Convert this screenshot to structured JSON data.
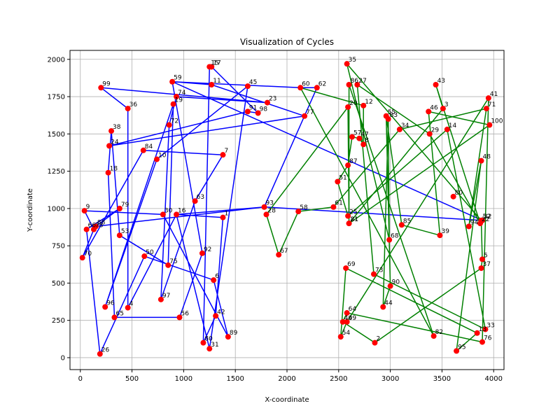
{
  "chart_data": {
    "type": "scatter",
    "title": "Visualization of Cycles",
    "xlabel": "X-coordinate",
    "ylabel": "Y-coordinate",
    "xlim": [
      -100,
      4100
    ],
    "ylim": [
      -80,
      2060
    ],
    "xticks": [
      0,
      500,
      1000,
      1500,
      2000,
      2500,
      3000,
      3500,
      4000
    ],
    "yticks": [
      0,
      250,
      500,
      750,
      1000,
      1250,
      1500,
      1750,
      2000
    ],
    "grid": true,
    "point_color": "#ff0000",
    "points": [
      {
        "id": "1",
        "x": 1380,
        "y": 940
      },
      {
        "id": "2",
        "x": 2850,
        "y": 100
      },
      {
        "id": "3",
        "x": 3510,
        "y": 1670
      },
      {
        "id": "4",
        "x": 460,
        "y": 335
      },
      {
        "id": "5",
        "x": 3890,
        "y": 660
      },
      {
        "id": "6",
        "x": 1290,
        "y": 520
      },
      {
        "id": "7",
        "x": 1380,
        "y": 1360
      },
      {
        "id": "8",
        "x": 2740,
        "y": 1430
      },
      {
        "id": "9",
        "x": 40,
        "y": 985
      },
      {
        "id": "10",
        "x": 740,
        "y": 1330
      },
      {
        "id": "11",
        "x": 1270,
        "y": 1830
      },
      {
        "id": "12",
        "x": 2740,
        "y": 1690
      },
      {
        "id": "13",
        "x": 3840,
        "y": 165
      },
      {
        "id": "14",
        "x": 3550,
        "y": 1530
      },
      {
        "id": "15",
        "x": 1250,
        "y": 1950
      },
      {
        "id": "16",
        "x": 930,
        "y": 960
      },
      {
        "id": "17",
        "x": 1270,
        "y": 1950
      },
      {
        "id": "18",
        "x": 270,
        "y": 1240
      },
      {
        "id": "19",
        "x": 900,
        "y": 1700
      },
      {
        "id": "20",
        "x": 2590,
        "y": 1680
      },
      {
        "id": "21",
        "x": 2600,
        "y": 900
      },
      {
        "id": "22",
        "x": 3870,
        "y": 900
      },
      {
        "id": "23",
        "x": 1810,
        "y": 1710
      },
      {
        "id": "24",
        "x": 280,
        "y": 1420
      },
      {
        "id": "25",
        "x": 2590,
        "y": 950
      },
      {
        "id": "26",
        "x": 190,
        "y": 25
      },
      {
        "id": "27",
        "x": 2680,
        "y": 1830
      },
      {
        "id": "28",
        "x": 1800,
        "y": 960
      },
      {
        "id": "29",
        "x": 3380,
        "y": 1500
      },
      {
        "id": "30",
        "x": 800,
        "y": 960
      },
      {
        "id": "31",
        "x": 1250,
        "y": 60
      },
      {
        "id": "32",
        "x": 3890,
        "y": 920
      },
      {
        "id": "33",
        "x": 3920,
        "y": 190
      },
      {
        "id": "34",
        "x": 3090,
        "y": 1530
      },
      {
        "id": "35",
        "x": 2580,
        "y": 1970
      },
      {
        "id": "36",
        "x": 460,
        "y": 1670
      },
      {
        "id": "37",
        "x": 3880,
        "y": 600
      },
      {
        "id": "38",
        "x": 300,
        "y": 1520
      },
      {
        "id": "39",
        "x": 3480,
        "y": 820
      },
      {
        "id": "40",
        "x": 2540,
        "y": 240
      },
      {
        "id": "41",
        "x": 3950,
        "y": 1740
      },
      {
        "id": "42",
        "x": 1310,
        "y": 280
      },
      {
        "id": "43",
        "x": 3440,
        "y": 1830
      },
      {
        "id": "44",
        "x": 2930,
        "y": 340
      },
      {
        "id": "45",
        "x": 1620,
        "y": 1820
      },
      {
        "id": "46",
        "x": 3370,
        "y": 1650
      },
      {
        "id": "47",
        "x": 2700,
        "y": 1470
      },
      {
        "id": "48",
        "x": 3880,
        "y": 1320
      },
      {
        "id": "49",
        "x": 2580,
        "y": 240
      },
      {
        "id": "50",
        "x": 620,
        "y": 680
      },
      {
        "id": "51",
        "x": 2490,
        "y": 1180
      },
      {
        "id": "52",
        "x": 3880,
        "y": 920
      },
      {
        "id": "53",
        "x": 380,
        "y": 820
      },
      {
        "id": "54",
        "x": 2520,
        "y": 140
      },
      {
        "id": "55",
        "x": 2960,
        "y": 1620
      },
      {
        "id": "56",
        "x": 960,
        "y": 270
      },
      {
        "id": "57",
        "x": 2630,
        "y": 1480
      },
      {
        "id": "58",
        "x": 2110,
        "y": 980
      },
      {
        "id": "59",
        "x": 890,
        "y": 1850
      },
      {
        "id": "60",
        "x": 2130,
        "y": 1810
      },
      {
        "id": "61",
        "x": 2450,
        "y": 1010
      },
      {
        "id": "62",
        "x": 2290,
        "y": 1810
      },
      {
        "id": "63",
        "x": 1110,
        "y": 1050
      },
      {
        "id": "64",
        "x": 2580,
        "y": 300
      },
      {
        "id": "65",
        "x": 330,
        "y": 270
      },
      {
        "id": "66",
        "x": 60,
        "y": 860
      },
      {
        "id": "67",
        "x": 1920,
        "y": 690
      },
      {
        "id": "68",
        "x": 2990,
        "y": 790
      },
      {
        "id": "69",
        "x": 2570,
        "y": 600
      },
      {
        "id": "70",
        "x": 20,
        "y": 670
      },
      {
        "id": "71",
        "x": 3930,
        "y": 1670
      },
      {
        "id": "72",
        "x": 860,
        "y": 1560
      },
      {
        "id": "73",
        "x": 2840,
        "y": 560
      },
      {
        "id": "74",
        "x": 930,
        "y": 1750
      },
      {
        "id": "75",
        "x": 850,
        "y": 620
      },
      {
        "id": "76",
        "x": 3890,
        "y": 105
      },
      {
        "id": "77",
        "x": 2170,
        "y": 1620
      },
      {
        "id": "78",
        "x": 130,
        "y": 860
      },
      {
        "id": "79",
        "x": 380,
        "y": 1000
      },
      {
        "id": "80",
        "x": 3610,
        "y": 1080
      },
      {
        "id": "81",
        "x": 2600,
        "y": 900
      },
      {
        "id": "82",
        "x": 3420,
        "y": 145
      },
      {
        "id": "83",
        "x": 2980,
        "y": 1600
      },
      {
        "id": "84",
        "x": 610,
        "y": 1390
      },
      {
        "id": "85",
        "x": 3110,
        "y": 890
      },
      {
        "id": "86",
        "x": 2600,
        "y": 1830
      },
      {
        "id": "87",
        "x": 2590,
        "y": 1290
      },
      {
        "id": "88",
        "x": 150,
        "y": 880
      },
      {
        "id": "89",
        "x": 1430,
        "y": 140
      },
      {
        "id": "90",
        "x": 3000,
        "y": 480
      },
      {
        "id": "91",
        "x": 1620,
        "y": 1650
      },
      {
        "id": "92",
        "x": 1180,
        "y": 700
      },
      {
        "id": "93",
        "x": 1780,
        "y": 1010
      },
      {
        "id": "94",
        "x": 3760,
        "y": 880
      },
      {
        "id": "95",
        "x": 3640,
        "y": 45
      },
      {
        "id": "96",
        "x": 240,
        "y": 340
      },
      {
        "id": "97",
        "x": 780,
        "y": 390
      },
      {
        "id": "98",
        "x": 1720,
        "y": 1640
      },
      {
        "id": "99",
        "x": 200,
        "y": 1810
      },
      {
        "id": "100",
        "x": 3960,
        "y": 1560
      },
      {
        "id": "80b",
        "x": 1190,
        "y": 100
      }
    ],
    "series": [
      {
        "color": "#0000ff",
        "cycle": [
          "88",
          "79",
          "66",
          "26",
          "50",
          "6",
          "89",
          "30",
          "9",
          "78",
          "70",
          "84",
          "7",
          "63",
          "97",
          "72",
          "74",
          "23",
          "99",
          "36",
          "4",
          "16",
          "31",
          "45",
          "10",
          "96",
          "19",
          "75",
          "53",
          "38",
          "18",
          "65",
          "56",
          "92",
          "59",
          "11",
          "77",
          "24",
          "91",
          "98",
          "17",
          "15",
          "80b",
          "42",
          "1",
          "16",
          "93",
          "62",
          "60",
          "59",
          "32",
          "93",
          "88"
        ]
      },
      {
        "color": "#008000",
        "cycle": [
          "67",
          "58",
          "61",
          "34",
          "71",
          "94",
          "48",
          "95",
          "13",
          "69",
          "54",
          "49",
          "41",
          "76",
          "64",
          "40",
          "2",
          "37",
          "5",
          "52",
          "35",
          "68",
          "83",
          "44",
          "90",
          "55",
          "85",
          "39",
          "46",
          "100",
          "81",
          "86",
          "82",
          "60",
          "12",
          "8",
          "47",
          "57",
          "87",
          "51",
          "25",
          "14",
          "33",
          "73",
          "27",
          "29",
          "22",
          "43",
          "3",
          "21",
          "20",
          "28"
        ]
      }
    ]
  }
}
